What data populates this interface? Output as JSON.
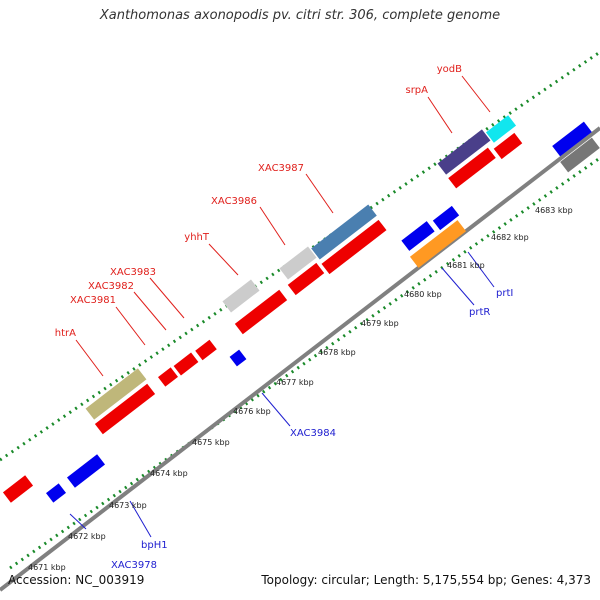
{
  "title": "Xanthomonas axonopodis pv. citri str. 306, complete genome",
  "footer": {
    "accession": "Accession: NC_003919",
    "topology": "Topology: circular; Length: 5,175,554 bp; Genes: 4,373"
  },
  "colors": {
    "forward_gene": "#ee0000",
    "reverse_gene": "#0000ee",
    "backbone": "#808080",
    "gc_ticks": "#1a8a2a",
    "label_forward": "#e0201c",
    "label_reverse": "#2020d0"
  },
  "kbp_labels": [
    "4671 kbp",
    "4672 kbp",
    "4673 kbp",
    "4674 kbp",
    "4675 kbp",
    "4676 kbp",
    "4677 kbp",
    "4678 kbp",
    "4679 kbp",
    "4680 kbp",
    "4681 kbp",
    "4682 kbp",
    "4683 kbp"
  ],
  "gene_labels_forward": [
    "htrA",
    "XAC3981",
    "XAC3982",
    "XAC3983",
    "yhhT",
    "XAC3986",
    "XAC3987",
    "srpA",
    "yodB"
  ],
  "gene_labels_reverse": [
    "XAC3978",
    "bpH1",
    "XAC3984",
    "prtR",
    "prtI"
  ]
}
